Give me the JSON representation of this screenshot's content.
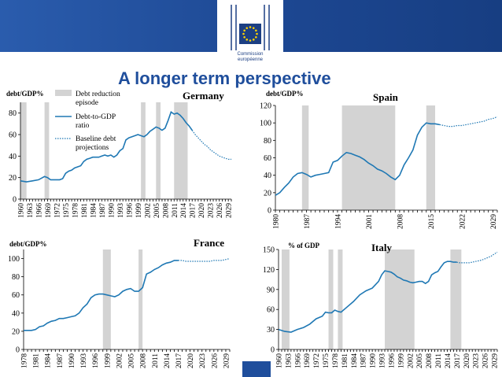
{
  "header": {
    "title": "A longer term perspective",
    "logo_line1": "Commission",
    "logo_line2": "européenne",
    "logo_star_color": "#ffd200",
    "logo_flag_color": "#1c3f83",
    "banner_color": "#1f4e9c"
  },
  "legend": {
    "shade_label_line1": "Debt reduction",
    "shade_label_line2": "episode",
    "line_label_line1": "Debt-to-GDP",
    "line_label_line2": "ratio",
    "proj_label_line1": "Baseline debt",
    "proj_label_line2": "projections"
  },
  "colors": {
    "line": "#1f78b4",
    "shade": "#d3d3d3"
  },
  "chart_data": [
    {
      "type": "line",
      "title": "Germany",
      "ylabel": "debt/GDP%",
      "xlim": [
        1960,
        2030
      ],
      "ylim": [
        0,
        90
      ],
      "yticks": [
        0,
        20,
        40,
        60,
        80
      ],
      "xticks": [
        "1960",
        "1963",
        "1966",
        "1969",
        "1972",
        "1975",
        "1978",
        "1981",
        "1984",
        "1987",
        "1990",
        "1993",
        "1996",
        "1999",
        "2002",
        "2005",
        "2008",
        "2011",
        "2014",
        "2017",
        "2020",
        "2023",
        "2026",
        "2029"
      ],
      "shaded": [
        [
          1960,
          1962
        ],
        [
          1968,
          1969.5
        ],
        [
          2000,
          2001.5
        ],
        [
          2005,
          2006.5
        ],
        [
          2011,
          2015.5
        ]
      ],
      "series": [
        {
          "name": "Debt-to-GDP ratio",
          "x": [
            1960,
            1962,
            1964,
            1966,
            1968,
            1969,
            1970,
            1971,
            1972,
            1973,
            1974,
            1975,
            1976,
            1977,
            1978,
            1979,
            1980,
            1981,
            1982,
            1983,
            1984,
            1985,
            1986,
            1987,
            1988,
            1989,
            1990,
            1991,
            1992,
            1993,
            1994,
            1995,
            1996,
            1997,
            1998,
            1999,
            2000,
            2001,
            2002,
            2003,
            2004,
            2005,
            2006,
            2007,
            2008,
            2009,
            2010,
            2011,
            2012,
            2013,
            2014,
            2015,
            2016,
            2017
          ],
          "y": [
            17,
            16,
            17,
            18,
            21,
            20,
            18,
            18,
            18,
            18,
            19,
            24,
            26,
            27,
            29,
            30,
            31,
            35,
            37,
            38,
            39,
            39,
            39,
            40,
            41,
            40,
            41,
            39,
            41,
            45,
            47,
            55,
            57,
            58,
            59,
            60,
            59,
            58,
            60,
            63,
            65,
            67,
            66,
            64,
            66,
            73,
            81,
            79,
            80,
            78,
            75,
            71,
            68,
            64
          ]
        },
        {
          "name": "Baseline debt projections",
          "projection": true,
          "x": [
            2017,
            2018,
            2019,
            2020,
            2021,
            2022,
            2023,
            2024,
            2025,
            2026,
            2027,
            2028,
            2029,
            2030
          ],
          "y": [
            64,
            60,
            57,
            54,
            51,
            49,
            46,
            44,
            42,
            40,
            39,
            38,
            37,
            37
          ]
        }
      ]
    },
    {
      "type": "line",
      "title": "Spain",
      "ylabel": "debt/GDP%",
      "xlim": [
        1980,
        2030
      ],
      "ylim": [
        0,
        120
      ],
      "yticks": [
        0,
        20,
        40,
        60,
        80,
        100,
        120
      ],
      "xticks": [
        "1980",
        "1987",
        "1994",
        "2001",
        "2008",
        "2015",
        "2022",
        "2029"
      ],
      "shaded": [
        [
          1986,
          1987.5
        ],
        [
          1995,
          2007
        ],
        [
          2014,
          2016
        ]
      ],
      "series": [
        {
          "name": "Debt-to-GDP ratio",
          "x": [
            1980,
            1981,
            1982,
            1983,
            1984,
            1985,
            1986,
            1987,
            1988,
            1989,
            1990,
            1991,
            1992,
            1993,
            1994,
            1995,
            1996,
            1997,
            1998,
            1999,
            2000,
            2001,
            2002,
            2003,
            2004,
            2005,
            2006,
            2007,
            2008,
            2009,
            2010,
            2011,
            2012,
            2013,
            2014,
            2015,
            2016,
            2017
          ],
          "y": [
            17,
            20,
            26,
            31,
            38,
            42,
            43,
            41,
            38,
            40,
            41,
            42,
            43,
            55,
            57,
            62,
            66,
            65,
            63,
            61,
            58,
            54,
            51,
            47,
            45,
            42,
            38,
            35,
            40,
            52,
            60,
            69,
            86,
            95,
            100,
            99,
            99,
            98
          ]
        },
        {
          "name": "Baseline debt projections",
          "projection": true,
          "x": [
            2017,
            2018,
            2019,
            2020,
            2021,
            2022,
            2023,
            2024,
            2025,
            2026,
            2027,
            2028,
            2029,
            2030
          ],
          "y": [
            98,
            97,
            96,
            96,
            97,
            97,
            98,
            99,
            100,
            101,
            102,
            104,
            105,
            107
          ]
        }
      ]
    },
    {
      "type": "line",
      "title": "France",
      "ylabel": "debt/GDP%",
      "xlim": [
        1978,
        2030
      ],
      "ylim": [
        0,
        110
      ],
      "yticks": [
        0,
        20,
        40,
        60,
        80,
        100
      ],
      "xticks": [
        "1978",
        "1981",
        "1984",
        "1987",
        "1990",
        "1993",
        "1996",
        "1999",
        "2002",
        "2005",
        "2008",
        "2011",
        "2014",
        "2017",
        "2020",
        "2023",
        "2026",
        "2029"
      ],
      "shaded": [
        [
          1998,
          2000
        ],
        [
          2007,
          2008
        ]
      ],
      "series": [
        {
          "name": "Debt-to-GDP ratio",
          "x": [
            1978,
            1979,
            1980,
            1981,
            1982,
            1983,
            1984,
            1985,
            1986,
            1987,
            1988,
            1989,
            1990,
            1991,
            1992,
            1993,
            1994,
            1995,
            1996,
            1997,
            1998,
            1999,
            2000,
            2001,
            2002,
            2003,
            2004,
            2005,
            2006,
            2007,
            2008,
            2009,
            2010,
            2011,
            2012,
            2013,
            2014,
            2015,
            2016,
            2017
          ],
          "y": [
            21,
            21,
            21,
            22,
            25,
            26,
            29,
            31,
            32,
            34,
            34,
            35,
            36,
            37,
            40,
            46,
            50,
            57,
            60,
            61,
            61,
            60,
            59,
            58,
            60,
            64,
            66,
            67,
            64,
            64,
            68,
            83,
            85,
            88,
            90,
            93,
            95,
            96,
            98,
            98
          ]
        },
        {
          "name": "Baseline debt projections",
          "projection": true,
          "x": [
            2017,
            2018,
            2019,
            2020,
            2021,
            2022,
            2023,
            2024,
            2025,
            2026,
            2027,
            2028,
            2029,
            2030
          ],
          "y": [
            98,
            98,
            97,
            97,
            97,
            97,
            97,
            97,
            97,
            98,
            98,
            98,
            99,
            100
          ]
        }
      ]
    },
    {
      "type": "line",
      "title": "Italy",
      "ylabel": "% of GDP",
      "xlim": [
        1960,
        2030
      ],
      "ylim": [
        0,
        150
      ],
      "yticks": [
        0,
        30,
        60,
        90,
        120,
        150
      ],
      "xticks": [
        "1960",
        "1963",
        "1966",
        "1969",
        "1972",
        "1975",
        "1978",
        "1981",
        "1984",
        "1987",
        "1990",
        "1993",
        "1996",
        "1999",
        "2002",
        "2005",
        "2008",
        "2011",
        "2014",
        "2017",
        "2020",
        "2023",
        "2026",
        "2029"
      ],
      "shaded": [
        [
          1961,
          1963.5
        ],
        [
          1976,
          1977.5
        ],
        [
          1979,
          1980.5
        ],
        [
          1994,
          2003.5
        ],
        [
          2015,
          2018.5
        ]
      ],
      "series": [
        {
          "name": "Debt-to-GDP ratio",
          "x": [
            1960,
            1962,
            1964,
            1966,
            1968,
            1970,
            1972,
            1974,
            1975,
            1976,
            1977,
            1978,
            1979,
            1980,
            1982,
            1984,
            1986,
            1988,
            1990,
            1992,
            1993,
            1994,
            1995,
            1996,
            1997,
            1998,
            1999,
            2000,
            2001,
            2002,
            2003,
            2004,
            2005,
            2006,
            2007,
            2008,
            2009,
            2010,
            2011,
            2012,
            2013,
            2014,
            2015,
            2016,
            2017
          ],
          "y": [
            30,
            27,
            26,
            30,
            33,
            38,
            46,
            50,
            56,
            55,
            55,
            59,
            57,
            56,
            64,
            72,
            82,
            88,
            92,
            102,
            112,
            118,
            117,
            116,
            113,
            109,
            107,
            104,
            103,
            101,
            100,
            101,
            102,
            102,
            99,
            102,
            112,
            115,
            117,
            124,
            130,
            132,
            132,
            131,
            131
          ]
        },
        {
          "name": "Baseline debt projections",
          "projection": true,
          "x": [
            2017,
            2018,
            2019,
            2020,
            2021,
            2022,
            2023,
            2024,
            2025,
            2026,
            2027,
            2028,
            2029,
            2030
          ],
          "y": [
            131,
            130,
            130,
            130,
            130,
            131,
            132,
            133,
            134,
            136,
            138,
            140,
            143,
            146
          ]
        }
      ]
    }
  ]
}
